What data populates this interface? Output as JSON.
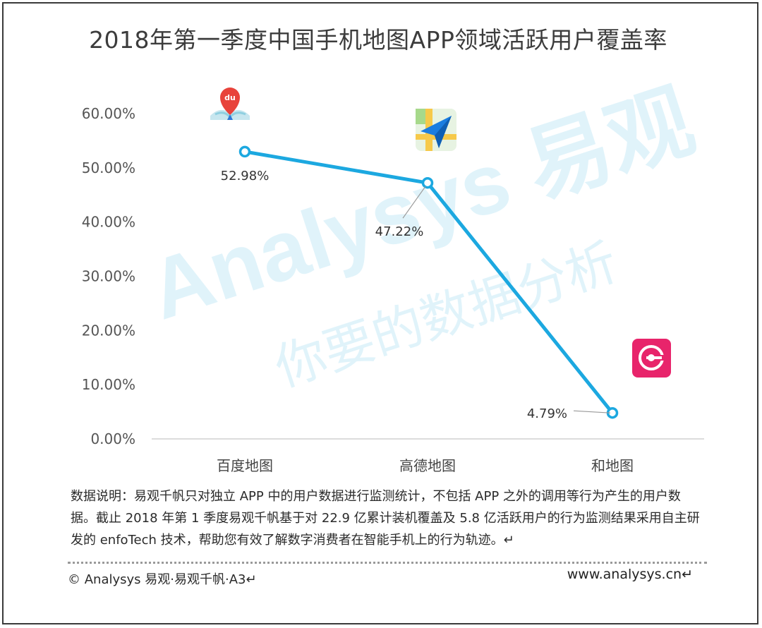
{
  "title": "2018年第一季度中国手机地图APP领域活跃用户覆盖率",
  "chart_data": {
    "type": "line",
    "categories": [
      "百度地图",
      "高德地图",
      "和地图"
    ],
    "values": [
      52.98,
      47.22,
      4.79
    ],
    "value_labels": [
      "52.98%",
      "47.22%",
      "4.79%"
    ],
    "y_ticks": [
      "0.00%",
      "10.00%",
      "20.00%",
      "30.00%",
      "40.00%",
      "50.00%",
      "60.00%"
    ],
    "ylim": [
      0,
      60
    ],
    "line_color": "#1ca8e0",
    "grid": false,
    "legend": "none"
  },
  "icons": [
    "baidu-map-icon",
    "gaode-map-icon",
    "hemap-icon"
  ],
  "watermark": {
    "brand": "Analysys 易观",
    "slogan": "你要的数据分析"
  },
  "note": "数据说明：易观千帆只对独立 APP 中的用户数据进行监测统计，不包括 APP 之外的调用等行为产生的用户数据。截止 2018 年第 1 季度易观千帆基于对 22.9 亿累计装机覆盖及 5.8 亿活跃用户的行为监测结果采用自主研发的 enfoTech 技术，帮助您有效了解数字消费者在智能手机上的行为轨迹。↵",
  "copyright": "© Analysys 易观·易观千帆·A3↵",
  "website": "www.analysys.cn↵"
}
